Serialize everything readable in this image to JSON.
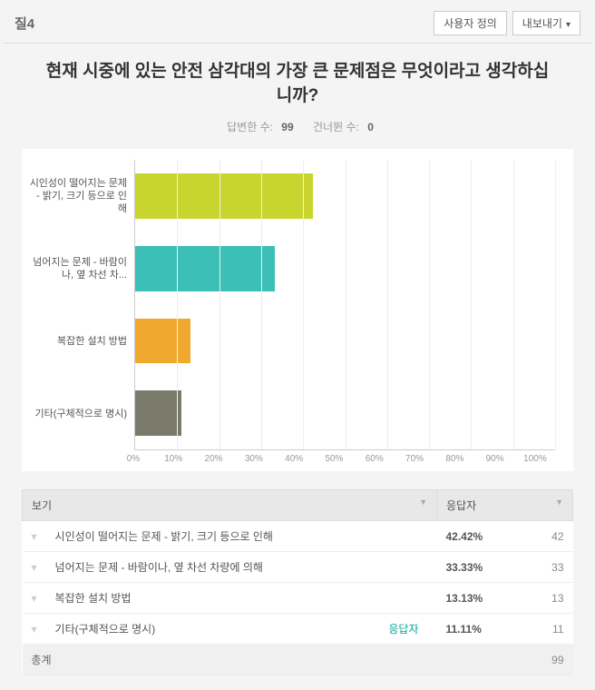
{
  "header": {
    "question_label": "질4",
    "custom_button": "사용자 정의",
    "export_button": "내보내기"
  },
  "title": "현재 시중에 있는 안전 삼각대의 가장 큰 문제점은 무엇이라고 생각하십니까?",
  "stats": {
    "answered_label": "답변한 수:",
    "answered_value": "99",
    "skipped_label": "건너뛴 수:",
    "skipped_value": "0"
  },
  "chart": {
    "type": "bar-horizontal",
    "xlim": [
      0,
      100
    ],
    "xtick_step": 10,
    "xtick_suffix": "%",
    "grid_color": "#eeeeee",
    "axis_color": "#cccccc",
    "background_color": "#ffffff",
    "bar_height_ratio": 0.78,
    "categories": [
      "시인성이 떨어지는 문제 - 밝기, 크기 등으로 인해",
      "넘어지는 문제 - 바람이나, 옆 차선 차...",
      "복잡한 설치 방법",
      "기타(구체적으로 명시)"
    ],
    "values": [
      42.42,
      33.33,
      13.13,
      11.11
    ],
    "bar_colors": [
      "#c7d52e",
      "#3cbfb6",
      "#f0a92e",
      "#7a7a6a"
    ],
    "label_fontsize": 11,
    "tick_fontsize": 10
  },
  "table": {
    "col_view": "보기",
    "col_resp": "응답자",
    "rows": [
      {
        "label": "시인성이 떨어지는 문제 - 밝기, 크기 등으로 인해",
        "pct": "42.42%",
        "count": "42"
      },
      {
        "label": "넘어지는 문제 - 바람이나, 옆 차선 차량에 의해",
        "pct": "33.33%",
        "count": "33"
      },
      {
        "label": "복잡한 설치 방법",
        "pct": "13.13%",
        "count": "13"
      },
      {
        "label": "기타(구체적으로 명시)",
        "link": "응답자",
        "pct": "11.11%",
        "count": "11"
      }
    ],
    "total_label": "총계",
    "total_count": "99"
  }
}
